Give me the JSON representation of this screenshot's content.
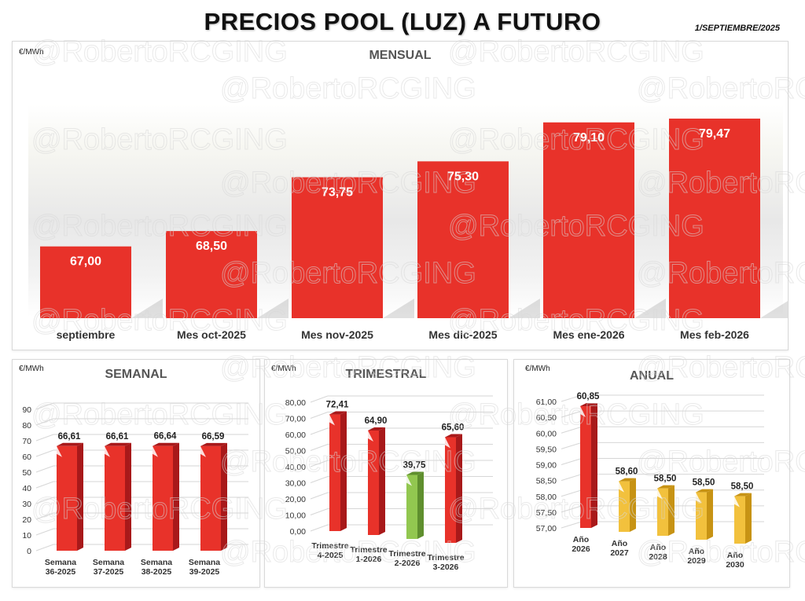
{
  "header": {
    "title": "PRECIOS POOL (LUZ) A FUTURO",
    "date": "1/SEPTIEMBRE/2025",
    "watermark": "@RobertoRCGING"
  },
  "colors": {
    "red": "#e8322a",
    "red_dark": "#a8191a",
    "green": "#92c750",
    "green_dark": "#5f8f2e",
    "yellow": "#f2c13d",
    "yellow_dark": "#c79314"
  },
  "chart_data": [
    {
      "id": "monthly",
      "type": "bar",
      "title": "MENSUAL",
      "unit": "€/MWh",
      "categories": [
        "septiembre",
        "Mes oct-2025",
        "Mes nov-2025",
        "Mes dic-2025",
        "Mes ene-2026",
        "Mes feb-2026"
      ],
      "values": [
        67.0,
        68.5,
        73.75,
        75.3,
        79.1,
        79.47
      ],
      "labels": [
        "67,00",
        "68,50",
        "73,75",
        "75,30",
        "79,10",
        "79,47"
      ],
      "ylim": [
        60,
        81
      ],
      "grid": false
    },
    {
      "id": "weekly",
      "type": "bar",
      "title": "SEMANAL",
      "unit": "€/MWh",
      "categories": [
        [
          "Semana",
          "36-2025"
        ],
        [
          "Semana",
          "37-2025"
        ],
        [
          "Semana",
          "38-2025"
        ],
        [
          "Semana",
          "39-2025"
        ]
      ],
      "values": [
        66.61,
        66.61,
        66.64,
        66.59
      ],
      "labels": [
        "66,61",
        "66,61",
        "66,64",
        "66,59"
      ],
      "yticks": [
        "0",
        "10",
        "20",
        "30",
        "40",
        "50",
        "60",
        "70",
        "80",
        "90"
      ],
      "ylim": [
        0,
        90
      ],
      "grid": true
    },
    {
      "id": "quarterly",
      "type": "bar",
      "title": "TRIMESTRAL",
      "unit": "€/MWh",
      "categories": [
        [
          "Trimestre",
          "4-2025"
        ],
        [
          "Trimestre",
          "1-2026"
        ],
        [
          "Trimestre",
          "2-2026"
        ],
        [
          "Trimestre",
          "3-2026"
        ]
      ],
      "values": [
        72.41,
        64.9,
        39.75,
        65.6
      ],
      "labels": [
        "72,41",
        "64,90",
        "39,75",
        "65,60"
      ],
      "bar_colors": [
        "red",
        "red",
        "green",
        "red"
      ],
      "yticks": [
        "0,00",
        "10,00",
        "20,00",
        "30,00",
        "40,00",
        "50,00",
        "60,00",
        "70,00",
        "80,00"
      ],
      "ylim": [
        0,
        80
      ],
      "grid": true
    },
    {
      "id": "annual",
      "type": "bar",
      "title": "ANUAL",
      "unit": "€/MWh",
      "categories": [
        [
          "Año",
          "2026"
        ],
        [
          "Año",
          "2027"
        ],
        [
          "Año",
          "2028"
        ],
        [
          "Año",
          "2029"
        ],
        [
          "Año",
          "2030"
        ]
      ],
      "values": [
        60.85,
        58.6,
        58.5,
        58.5,
        58.5
      ],
      "labels": [
        "60,85",
        "58,60",
        "58,50",
        "58,50",
        "58,50"
      ],
      "bar_colors": [
        "red",
        "yellow",
        "yellow",
        "yellow",
        "yellow"
      ],
      "yticks": [
        "57,00",
        "57,50",
        "58,00",
        "58,50",
        "59,00",
        "59,50",
        "60,00",
        "60,50",
        "61,00"
      ],
      "ylim": [
        57,
        61
      ],
      "grid": true
    }
  ]
}
